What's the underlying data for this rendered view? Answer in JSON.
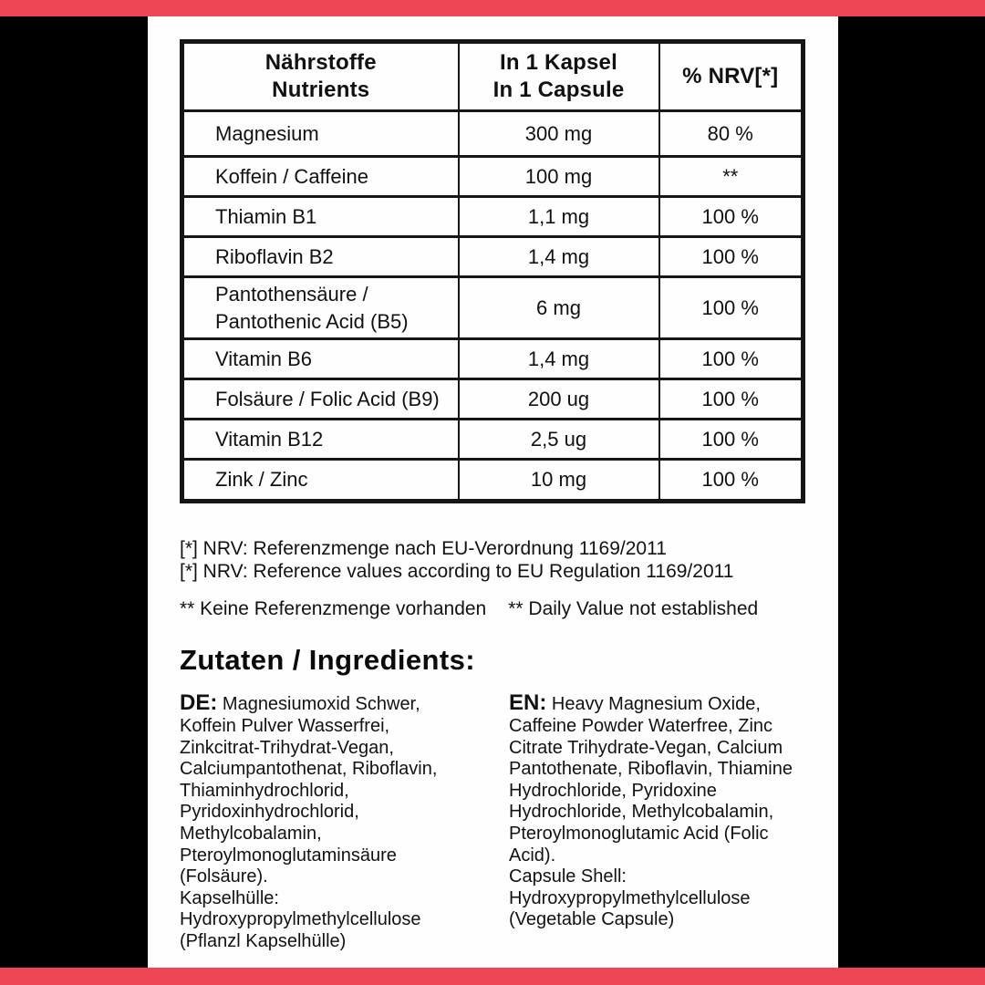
{
  "colors": {
    "accent_red": "#EE4656",
    "background_black": "#000000",
    "panel_white": "#FEFEFE",
    "text_black": "#111111"
  },
  "table": {
    "header": {
      "col1_line1": "Nährstoffe",
      "col1_line2": "Nutrients",
      "col2_line1": "In 1 Kapsel",
      "col2_line2": "In 1 Capsule",
      "col3": "% NRV[*]"
    },
    "rows": [
      {
        "name": "Magnesium",
        "amount": "300 mg",
        "nrv": "80 %"
      },
      {
        "name": "Koffein / Caffeine",
        "amount": "100 mg",
        "nrv": "**"
      },
      {
        "name": "Thiamin B1",
        "amount": "1,1 mg",
        "nrv": "100 %"
      },
      {
        "name": "Riboflavin B2",
        "amount": "1,4 mg",
        "nrv": "100 %"
      },
      {
        "name": "Pantothensäure / Pantothenic Acid (B5)",
        "amount": "6 mg",
        "nrv": "100 %"
      },
      {
        "name": "Vitamin B6",
        "amount": "1,4 mg",
        "nrv": "100 %"
      },
      {
        "name": "Folsäure / Folic Acid (B9)",
        "amount": "200 ug",
        "nrv": "100 %"
      },
      {
        "name": "Vitamin B12",
        "amount": "2,5 ug",
        "nrv": "100 %"
      },
      {
        "name": "Zink / Zinc",
        "amount": "10 mg",
        "nrv": "100 %"
      }
    ]
  },
  "footnotes": {
    "nrv_de": "[*] NRV: Referenzmenge nach EU-Verordnung 1169/2011",
    "nrv_en": "[*] NRV: Reference values according to EU Regulation 1169/2011",
    "no_ref_de": "** Keine Referenzmenge vorhanden",
    "no_ref_en": "** Daily Value not established"
  },
  "ingredients": {
    "heading": "Zutaten / Ingredients:",
    "de": {
      "prefix": "DE:",
      "text": "Magnesiumoxid Schwer, Koffein Pulver Wasserfrei, Zinkcitrat-Trihydrat-Vegan, Calciumpantothenat, Riboflavin, Thiaminhydrochlorid, Pyridoxinhydrochlorid, Methylcobalamin, Pteroylmonoglutaminsäure (Folsäure).",
      "shell": "Kapselhülle: Hydroxypropylmethylcellulose (Pflanzl Kapselhülle)"
    },
    "en": {
      "prefix": "EN:",
      "text": "Heavy Magnesium Oxide, Caffeine Powder Waterfree, Zinc Citrate Trihydrate-Vegan, Calcium Pantothenate, Riboflavin, Thiamine Hydrochloride, Pyridoxine Hydrochloride, Methylcobalamin, Pteroylmonoglutamic Acid (Folic Acid).",
      "shell": "Capsule Shell: Hydroxypropylmethylcellulose (Vegetable Capsule)"
    }
  }
}
